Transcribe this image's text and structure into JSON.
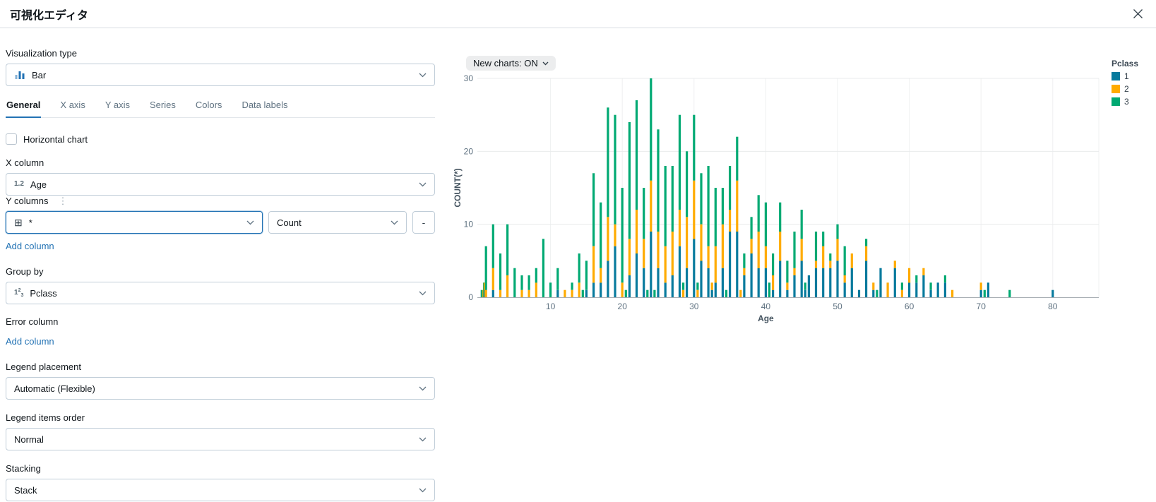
{
  "header": {
    "title": "可視化エディタ"
  },
  "panel": {
    "visualization_type": {
      "label": "Visualization type",
      "value": "Bar"
    },
    "tabs": [
      {
        "label": "General",
        "active": true
      },
      {
        "label": "X axis",
        "active": false
      },
      {
        "label": "Y axis",
        "active": false
      },
      {
        "label": "Series",
        "active": false
      },
      {
        "label": "Colors",
        "active": false
      },
      {
        "label": "Data labels",
        "active": false
      }
    ],
    "horizontal_chart": {
      "label": "Horizontal chart",
      "checked": false
    },
    "x_column": {
      "label": "X column",
      "value": "Age",
      "type_icon_glyph": "1.2"
    },
    "y_columns": {
      "label": "Y columns",
      "column_value": "*",
      "column_icon_glyph": "⊞",
      "aggregation_value": "Count",
      "remove_label": "-",
      "add_label": "Add column",
      "kebab_glyph": "⋮"
    },
    "group_by": {
      "label": "Group by",
      "value": "Pclass"
    },
    "error_column": {
      "label": "Error column",
      "add_label": "Add column"
    },
    "legend_placement": {
      "label": "Legend placement",
      "value": "Automatic (Flexible)"
    },
    "legend_items_order": {
      "label": "Legend items order",
      "value": "Normal"
    },
    "stacking": {
      "label": "Stacking",
      "value": "Stack"
    }
  },
  "chart": {
    "new_charts_toggle": "New charts: ON"
  },
  "chart_data": {
    "type": "bar",
    "stacked": true,
    "xlabel": "Age",
    "ylabel": "COUNT(*)",
    "xlim": [
      0,
      86.5
    ],
    "ylim": [
      0,
      30
    ],
    "x_ticks": [
      10,
      20,
      30,
      40,
      50,
      60,
      70,
      80
    ],
    "y_ticks": [
      0,
      10,
      20,
      30
    ],
    "grid": true,
    "legend": {
      "title": "Pclass",
      "position": "right",
      "entries": [
        {
          "label": "1",
          "color": "#077A9D"
        },
        {
          "label": "2",
          "color": "#FFAB00"
        },
        {
          "label": "3",
          "color": "#00A972"
        }
      ]
    },
    "x": [
      0.42,
      0.67,
      0.75,
      0.83,
      0.92,
      1,
      2,
      3,
      4,
      5,
      6,
      7,
      8,
      9,
      10,
      11,
      12,
      13,
      14,
      14.5,
      15,
      16,
      17,
      18,
      19,
      20,
      20.5,
      21,
      22,
      23,
      23.5,
      24,
      24.5,
      25,
      26,
      27,
      28,
      28.5,
      29,
      30,
      30.5,
      31,
      32,
      32.5,
      33,
      34,
      34.5,
      35,
      36,
      36.5,
      37,
      38,
      39,
      40,
      40.5,
      41,
      42,
      43,
      44,
      45,
      45.5,
      46,
      47,
      48,
      49,
      50,
      51,
      52,
      53,
      54,
      55,
      55.5,
      56,
      57,
      58,
      59,
      60,
      61,
      62,
      63,
      64,
      65,
      66,
      70,
      70.5,
      71,
      74,
      80
    ],
    "series": [
      {
        "name": "1",
        "color": "#077A9D",
        "values": [
          0,
          0,
          0,
          0,
          1,
          0,
          1,
          0,
          0,
          0,
          0,
          0,
          0,
          0,
          0,
          1,
          0,
          0,
          0,
          0,
          1,
          2,
          2,
          5,
          7,
          0,
          0,
          3,
          6,
          4,
          0,
          9,
          0,
          4,
          2,
          3,
          7,
          0,
          4,
          8,
          0,
          5,
          4,
          1,
          2,
          4,
          0,
          9,
          9,
          0,
          3,
          6,
          4,
          4,
          0,
          1,
          5,
          1,
          3,
          5,
          1,
          3,
          4,
          4,
          4,
          5,
          2,
          4,
          1,
          5,
          1,
          0,
          4,
          0,
          4,
          0,
          2,
          2,
          3,
          1,
          2,
          2,
          0,
          1,
          0,
          2,
          0,
          1
        ]
      },
      {
        "name": "2",
        "color": "#FFAB00",
        "values": [
          0,
          1,
          0,
          2,
          0,
          1,
          3,
          1,
          3,
          0,
          1,
          1,
          2,
          0,
          0,
          0,
          1,
          1,
          2,
          0,
          0,
          5,
          2,
          6,
          3,
          2,
          0,
          5,
          6,
          4,
          0,
          7,
          0,
          5,
          5,
          6,
          5,
          1,
          7,
          8,
          1,
          5,
          3,
          1,
          5,
          6,
          0,
          3,
          7,
          1,
          1,
          2,
          5,
          3,
          0,
          2,
          4,
          1,
          1,
          3,
          0,
          0,
          1,
          3,
          1,
          3,
          1,
          2,
          0,
          2,
          1,
          0,
          0,
          2,
          1,
          1,
          2,
          0,
          1,
          0,
          0,
          0,
          1,
          1,
          0,
          0,
          0,
          0
        ]
      },
      {
        "name": "3",
        "color": "#00A972",
        "values": [
          1,
          0,
          2,
          0,
          0,
          6,
          6,
          5,
          7,
          4,
          2,
          2,
          2,
          8,
          2,
          3,
          0,
          1,
          4,
          1,
          4,
          10,
          9,
          15,
          15,
          13,
          1,
          16,
          15,
          7,
          1,
          14,
          1,
          14,
          11,
          9,
          13,
          1,
          9,
          9,
          1,
          7,
          11,
          0,
          8,
          5,
          1,
          6,
          6,
          0,
          2,
          3,
          5,
          6,
          2,
          3,
          4,
          3,
          5,
          4,
          1,
          0,
          4,
          2,
          1,
          2,
          4,
          0,
          0,
          1,
          0,
          1,
          0,
          0,
          0,
          1,
          0,
          1,
          0,
          1,
          0,
          1,
          0,
          0,
          1,
          0,
          1,
          0
        ]
      }
    ]
  }
}
